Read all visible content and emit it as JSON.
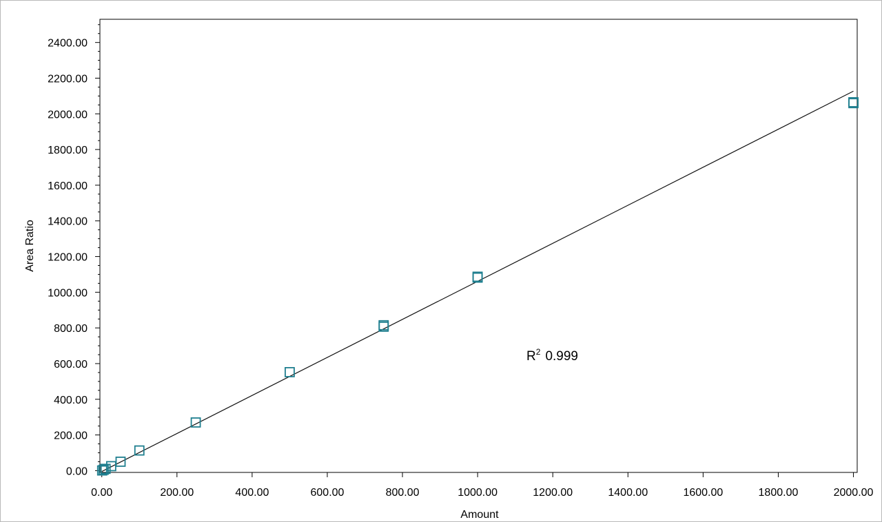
{
  "chart_data": {
    "type": "scatter",
    "xlabel": "Amount",
    "ylabel": "Area Ratio",
    "xlim": [
      -5,
      2010
    ],
    "ylim": [
      -10,
      2530
    ],
    "x_ticks": [
      0,
      200,
      400,
      600,
      800,
      1000,
      1200,
      1400,
      1600,
      1800,
      2000
    ],
    "y_ticks": [
      0,
      200,
      400,
      600,
      800,
      1000,
      1200,
      1400,
      1600,
      1800,
      2000,
      2200,
      2400
    ],
    "x_tick_labels": [
      "0.00",
      "200.00",
      "400.00",
      "600.00",
      "800.00",
      "1000.00",
      "1200.00",
      "1400.00",
      "1600.00",
      "1800.00",
      "2000.00"
    ],
    "y_tick_labels": [
      "0.00",
      "200.00",
      "400.00",
      "600.00",
      "800.00",
      "1000.00",
      "1200.00",
      "1400.00",
      "1600.00",
      "1800.00",
      "2000.00",
      "2200.00",
      "2400.00"
    ],
    "marker": "open-square",
    "marker_color": "#1f7f8f",
    "line_color": "#111111",
    "series": [
      {
        "points": [
          {
            "x": 1,
            "y": 1
          },
          {
            "x": 5,
            "y": 5
          },
          {
            "x": 10,
            "y": 10
          },
          {
            "x": 25,
            "y": 25
          },
          {
            "x": 50,
            "y": 50
          },
          {
            "x": 100,
            "y": 113
          },
          {
            "x": 250,
            "y": 270
          },
          {
            "x": 500,
            "y": 552
          },
          {
            "x": 750,
            "y": 815
          },
          {
            "x": 750,
            "y": 807
          },
          {
            "x": 1000,
            "y": 1087
          },
          {
            "x": 1000,
            "y": 1082
          },
          {
            "x": 2000,
            "y": 2065
          },
          {
            "x": 2000,
            "y": 2060
          }
        ]
      }
    ],
    "fit_line": {
      "x": [
        0,
        2000
      ],
      "y": [
        -5,
        2127
      ]
    },
    "annotation": {
      "label": "R",
      "superscript": "2",
      "value": "0.999",
      "x": 1130,
      "y": 620
    }
  }
}
